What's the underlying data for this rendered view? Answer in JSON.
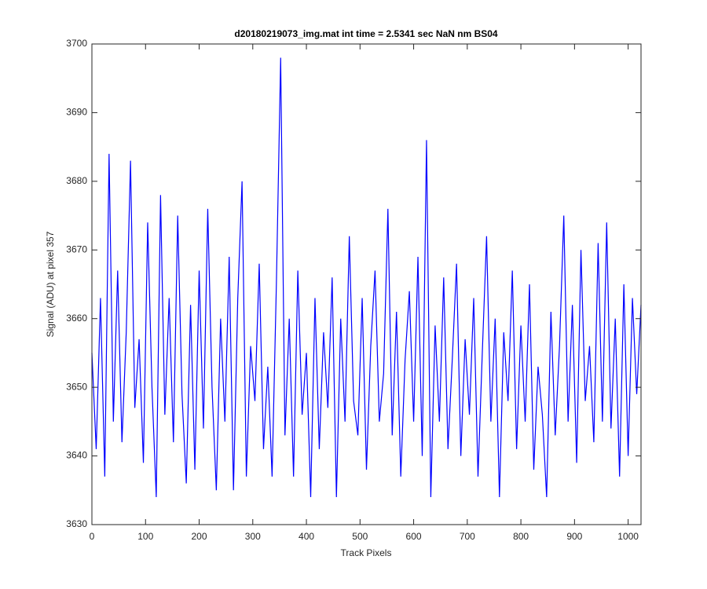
{
  "chart_data": {
    "type": "line",
    "title": "d20180219073_img.mat int time = 2.5341 sec  NaN nm BS04",
    "x_label": "Track Pixels",
    "y_label": "Signal (ADU) at pixel 357",
    "x": [
      0,
      8,
      16,
      24,
      32,
      40,
      48,
      56,
      64,
      72,
      80,
      88,
      96,
      104,
      112,
      120,
      128,
      136,
      144,
      152,
      160,
      168,
      176,
      184,
      192,
      200,
      208,
      216,
      224,
      232,
      240,
      248,
      256,
      264,
      272,
      280,
      288,
      296,
      304,
      312,
      320,
      328,
      336,
      344,
      352,
      360,
      368,
      376,
      384,
      392,
      400,
      408,
      416,
      424,
      432,
      440,
      448,
      456,
      464,
      472,
      480,
      488,
      496,
      504,
      512,
      520,
      528,
      536,
      544,
      552,
      560,
      568,
      576,
      584,
      592,
      600,
      608,
      616,
      624,
      632,
      640,
      648,
      656,
      664,
      672,
      680,
      688,
      696,
      704,
      712,
      720,
      728,
      736,
      744,
      752,
      760,
      768,
      776,
      784,
      792,
      800,
      808,
      816,
      824,
      832,
      840,
      848,
      856,
      864,
      872,
      880,
      888,
      896,
      904,
      912,
      920,
      928,
      936,
      944,
      952,
      960,
      968,
      976,
      984,
      992,
      1000,
      1008,
      1016,
      1024
    ],
    "series": [
      {
        "color": "#0000ff",
        "values": [
          3655,
          3641,
          3663,
          3637,
          3684,
          3645,
          3667,
          3642,
          3658,
          3683,
          3647,
          3657,
          3639,
          3674,
          3650,
          3634,
          3678,
          3646,
          3663,
          3642,
          3675,
          3649,
          3636,
          3662,
          3638,
          3667,
          3644,
          3676,
          3650,
          3635,
          3660,
          3645,
          3669,
          3635,
          3663,
          3680,
          3637,
          3656,
          3648,
          3668,
          3641,
          3653,
          3637,
          3665,
          3698,
          3643,
          3660,
          3637,
          3667,
          3646,
          3655,
          3634,
          3663,
          3641,
          3658,
          3647,
          3666,
          3634,
          3660,
          3645,
          3672,
          3648,
          3643,
          3663,
          3638,
          3656,
          3667,
          3645,
          3652,
          3676,
          3643,
          3661,
          3637,
          3654,
          3664,
          3645,
          3669,
          3640,
          3686,
          3634,
          3659,
          3645,
          3666,
          3641,
          3654,
          3668,
          3640,
          3657,
          3646,
          3663,
          3637,
          3655,
          3672,
          3645,
          3660,
          3634,
          3658,
          3648,
          3667,
          3641,
          3659,
          3645,
          3665,
          3638,
          3653,
          3646,
          3634,
          3661,
          3643,
          3656,
          3675,
          3645,
          3662,
          3639,
          3670,
          3648,
          3656,
          3642,
          3671,
          3645,
          3674,
          3644,
          3660,
          3637,
          3665,
          3640,
          3663,
          3649,
          3662
        ]
      }
    ],
    "xlim": [
      0,
      1024
    ],
    "xticks": [
      0,
      100,
      200,
      300,
      400,
      500,
      600,
      700,
      800,
      900,
      1000
    ],
    "ylim": [
      3630,
      3700
    ],
    "yticks": [
      3630,
      3640,
      3650,
      3660,
      3670,
      3680,
      3690,
      3700
    ],
    "grid": false
  }
}
